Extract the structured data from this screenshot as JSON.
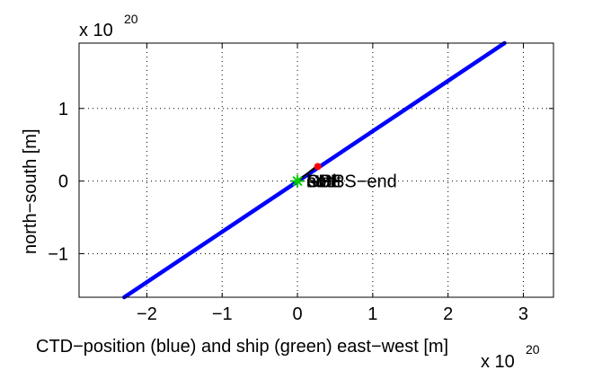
{
  "chart_data": {
    "type": "line",
    "title": "",
    "xlabel": "CTD−position (blue) and ship (green) east−west [m]",
    "ylabel": "north−south [m]",
    "x_multiplier": {
      "base": "x 10",
      "exponent": "20"
    },
    "y_multiplier": {
      "base": "x 10",
      "exponent": "20"
    },
    "xlim": [
      -2.9,
      3.4
    ],
    "ylim": [
      -1.6,
      1.9
    ],
    "x_ticks": [
      -2,
      -1,
      0,
      1,
      2,
      3
    ],
    "x_tick_labels": [
      "−2",
      "−1",
      "0",
      "1",
      "2",
      "3"
    ],
    "y_ticks": [
      -1,
      0,
      1
    ],
    "y_tick_labels": [
      "−1",
      "0",
      "1"
    ],
    "grid": true,
    "grid_style": "dotted",
    "series": [
      {
        "color": "#0000ff",
        "points": [
          [
            -2.3,
            -1.6
          ],
          [
            2.75,
            1.9
          ]
        ]
      },
      {
        "color": "#000000",
        "points": [
          [
            0.0,
            0.0
          ],
          [
            0.25,
            0.2
          ]
        ]
      },
      {
        "color": "#ff0000",
        "marker": "dot",
        "points": [
          [
            0.27,
            0.2
          ]
        ]
      },
      {
        "color": "#00cc00",
        "marker": "star",
        "points": [
          [
            0.0,
            0.0
          ]
        ]
      }
    ],
    "annotations": [
      {
        "text": "end",
        "x": 0.12,
        "y": 0.0
      },
      {
        "text": "SBE",
        "x": 0.12,
        "y": 0.0
      },
      {
        "text": "GPS",
        "x": 0.12,
        "y": 0.0
      },
      {
        "text": "bott",
        "x": 0.12,
        "y": 0.0
      },
      {
        "text": "start",
        "x": 0.12,
        "y": 0.0
      },
      {
        "text": "GPS−end",
        "x": 0.28,
        "y": 0.0
      }
    ]
  }
}
